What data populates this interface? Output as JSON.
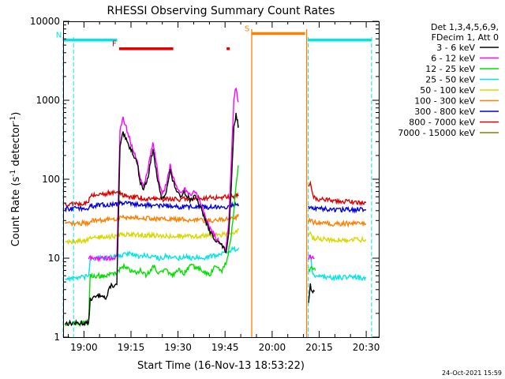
{
  "chart_data": {
    "type": "line",
    "title": "RHESSI Observing Summary Count Rates",
    "xlabel": "Start Time (16-Nov-13 18:53:22)",
    "ylabel_main": "Count Rate (s",
    "ylabel_sup1": "-1",
    "ylabel_mid": " detector",
    "ylabel_sup2": "-1",
    "ylabel_end": ")",
    "y_scale": "log",
    "ylim": [
      1,
      10000
    ],
    "xlim_min": [
      1133.37,
      1234
    ],
    "x_ticks": [
      {
        "min": 1140,
        "label": "19:00"
      },
      {
        "min": 1155,
        "label": "19:15"
      },
      {
        "min": 1170,
        "label": "19:30"
      },
      {
        "min": 1185,
        "label": "19:45"
      },
      {
        "min": 1200,
        "label": "20:00"
      },
      {
        "min": 1215,
        "label": "20:15"
      },
      {
        "min": 1230,
        "label": "20:30"
      }
    ],
    "y_ticks": [
      {
        "v": 1,
        "label": "1"
      },
      {
        "v": 10,
        "label": "10"
      },
      {
        "v": 100,
        "label": "100"
      },
      {
        "v": 1000,
        "label": "1000"
      },
      {
        "v": 10000,
        "label": "10000"
      }
    ],
    "legend_header": [
      "Det 1,3,4,5,6,9,",
      "FDecim 1, Att 0"
    ],
    "legend_placement": "right",
    "footer_date": "24-Oct-2021 15:59",
    "night_intervals": [
      [
        1133.37,
        1136.7
      ],
      [
        1211.5,
        1231.7
      ]
    ],
    "saa_interval": [
      1193.5,
      1211.0
    ],
    "flags": [
      {
        "label": "N",
        "x0": 1133.5,
        "x1": 1150.6,
        "y": 5800,
        "color": "#00e5e5"
      },
      {
        "label": "F",
        "x0": 1151.2,
        "x1": 1168.5,
        "y": 4500,
        "color": "#e00000"
      },
      {
        "label": "",
        "x0": 1185.5,
        "x1": 1186.5,
        "y": 4500,
        "color": "#e00000"
      },
      {
        "label": "S",
        "x0": 1193.5,
        "x1": 1210.5,
        "y": 7000,
        "color": "#ff7f00"
      },
      {
        "label": "",
        "x0": 1211.3,
        "x1": 1231.7,
        "y": 5800,
        "color": "#00e5e5"
      }
    ],
    "series": [
      {
        "name": "3 - 6 keV",
        "color": "#000000",
        "x": [
          1134,
          1141.5,
          1142,
          1146,
          1147,
          1148.5,
          1150.5,
          1151.5,
          1152.5,
          1154,
          1155.3,
          1157,
          1158,
          1159,
          1160.5,
          1162,
          1163,
          1164,
          1165,
          1166,
          1167.5,
          1168.5,
          1170.5,
          1172,
          1173.8,
          1175.5,
          1177,
          1178.5,
          1180,
          1181.5,
          1183,
          1184.2,
          1185.3,
          1186.2,
          1187,
          1187.8,
          1188.5,
          1189.2,
          1211.6,
          1212.2,
          1212.7,
          1213.5
        ],
        "y": [
          1.5,
          1.5,
          3,
          3.5,
          3,
          4.5,
          4.5,
          260,
          380,
          280,
          230,
          160,
          90,
          75,
          110,
          240,
          130,
          75,
          55,
          65,
          130,
          90,
          60,
          70,
          55,
          60,
          45,
          32,
          22,
          18,
          16,
          14,
          12,
          20,
          80,
          450,
          650,
          480,
          2.8,
          4.5,
          4,
          3.8
        ]
      },
      {
        "name": "6 - 12 keV",
        "color": "#ff00ff",
        "x": [
          1141.5,
          1142.5,
          1146,
          1147,
          1148,
          1149.5,
          1150.5,
          1151.5,
          1152.5,
          1154,
          1155.3,
          1157,
          1158,
          1159,
          1160.5,
          1162,
          1163,
          1164,
          1165,
          1166,
          1167.5,
          1168.5,
          1170.5,
          1172,
          1173.8,
          1175.5,
          1177,
          1178.5,
          1180,
          1181.5,
          1183,
          1184.2,
          1185.3,
          1186.2,
          1187,
          1187.8,
          1188.5,
          1189.2,
          1211.6,
          1212.2,
          1212.7,
          1213.5
        ],
        "y": [
          10,
          10,
          10,
          10,
          10,
          10,
          10,
          420,
          620,
          380,
          260,
          170,
          100,
          80,
          140,
          300,
          170,
          90,
          70,
          80,
          150,
          100,
          70,
          75,
          65,
          70,
          50,
          35,
          25,
          20,
          16,
          14,
          13,
          30,
          180,
          1000,
          1500,
          950,
          10,
          11,
          10,
          10
        ]
      },
      {
        "name": "12 - 25 keV",
        "color": "#00e000",
        "x": [
          1134,
          1141.5,
          1142,
          1147,
          1150.5,
          1152,
          1154,
          1156,
          1158,
          1160,
          1162,
          1164,
          1166,
          1168,
          1170,
          1172,
          1174,
          1176,
          1178,
          1180,
          1182,
          1184,
          1185.5,
          1186.5,
          1187.5,
          1188.5,
          1189.2,
          1211.6,
          1212.2,
          1212.8,
          1213.8
        ],
        "y": [
          1.5,
          1.5,
          6,
          6,
          6.5,
          8,
          7.5,
          6.5,
          7,
          6,
          8,
          6.5,
          7,
          6,
          7,
          6.5,
          8,
          7.5,
          7,
          6,
          8,
          7,
          9,
          15,
          30,
          80,
          150,
          7,
          7.5,
          7.2,
          7
        ]
      },
      {
        "name": "25 - 50 keV",
        "color": "#00e5e5",
        "x": [
          1134,
          1141.5,
          1142,
          1147,
          1150,
          1152,
          1154,
          1156,
          1158,
          1160,
          1162,
          1164,
          1166,
          1168,
          1170,
          1172,
          1174,
          1176,
          1178,
          1180,
          1182,
          1184,
          1186,
          1187.5,
          1188.5,
          1189.2,
          1211.6,
          1212.2,
          1213,
          1215,
          1220,
          1225,
          1229,
          1230
        ],
        "y": [
          5.5,
          5.8,
          10,
          10,
          10.5,
          11,
          11.5,
          11,
          10.5,
          11,
          10.5,
          10,
          10.5,
          10,
          10,
          10.5,
          10,
          10.5,
          10,
          10.5,
          11,
          11.5,
          12,
          13,
          13,
          13,
          10,
          10.5,
          6,
          5.8,
          5.7,
          5.8,
          5.6,
          5.7
        ]
      },
      {
        "name": "50 - 100 keV",
        "color": "#d8d800",
        "x": [
          1134,
          1141.5,
          1142,
          1150,
          1152,
          1155,
          1160,
          1165,
          1170,
          1175,
          1180,
          1185,
          1187,
          1188.5,
          1189.2,
          1211.6,
          1212.2,
          1213,
          1215,
          1220,
          1225,
          1230
        ],
        "y": [
          16,
          17,
          18,
          19,
          20,
          20,
          19.5,
          19,
          19,
          19,
          19.5,
          20,
          21,
          22,
          23,
          20,
          20,
          18,
          17.5,
          17,
          17.2,
          17
        ]
      },
      {
        "name": "100 - 300 keV",
        "color": "#ff7f00",
        "x": [
          1134,
          1141.5,
          1142,
          1150,
          1152,
          1155,
          1160,
          1165,
          1170,
          1175,
          1180,
          1185,
          1187,
          1188.5,
          1189.2,
          1211.6,
          1212.2,
          1213,
          1215,
          1220,
          1225,
          1230
        ],
        "y": [
          27,
          28,
          30,
          31,
          33,
          33,
          32,
          31,
          31,
          30.5,
          30,
          31,
          32,
          33,
          34,
          30,
          30,
          28.5,
          28,
          27,
          27.5,
          27
        ]
      },
      {
        "name": "300 - 800 keV",
        "color": "#0000e0",
        "x": [
          1134,
          1141.5,
          1142,
          1150,
          1152,
          1155,
          1160,
          1165,
          1170,
          1175,
          1180,
          1185,
          1187,
          1188.5,
          1189.2,
          1211.6,
          1212.2,
          1213,
          1215,
          1220,
          1225,
          1230
        ],
        "y": [
          42,
          43,
          46,
          48,
          50,
          49,
          47,
          46,
          45,
          45,
          44,
          45,
          46,
          47,
          48,
          44,
          44,
          43,
          42,
          41,
          41.5,
          41
        ]
      },
      {
        "name": "800 - 7000 keV",
        "color": "#e00000",
        "x": [
          1134,
          1141.5,
          1142,
          1150,
          1152,
          1155,
          1160,
          1165,
          1170,
          1175,
          1180,
          1185,
          1187,
          1188.5,
          1189.2,
          1211.6,
          1212.2,
          1213,
          1215,
          1220,
          1225,
          1230
        ],
        "y": [
          48,
          50,
          62,
          68,
          64,
          60,
          57,
          56,
          56,
          57,
          58,
          60,
          61,
          62,
          63,
          80,
          88,
          60,
          56,
          54,
          52,
          51
        ]
      },
      {
        "name": "7000 - 15000 keV",
        "color": "#808000",
        "x": [],
        "y": []
      }
    ]
  }
}
